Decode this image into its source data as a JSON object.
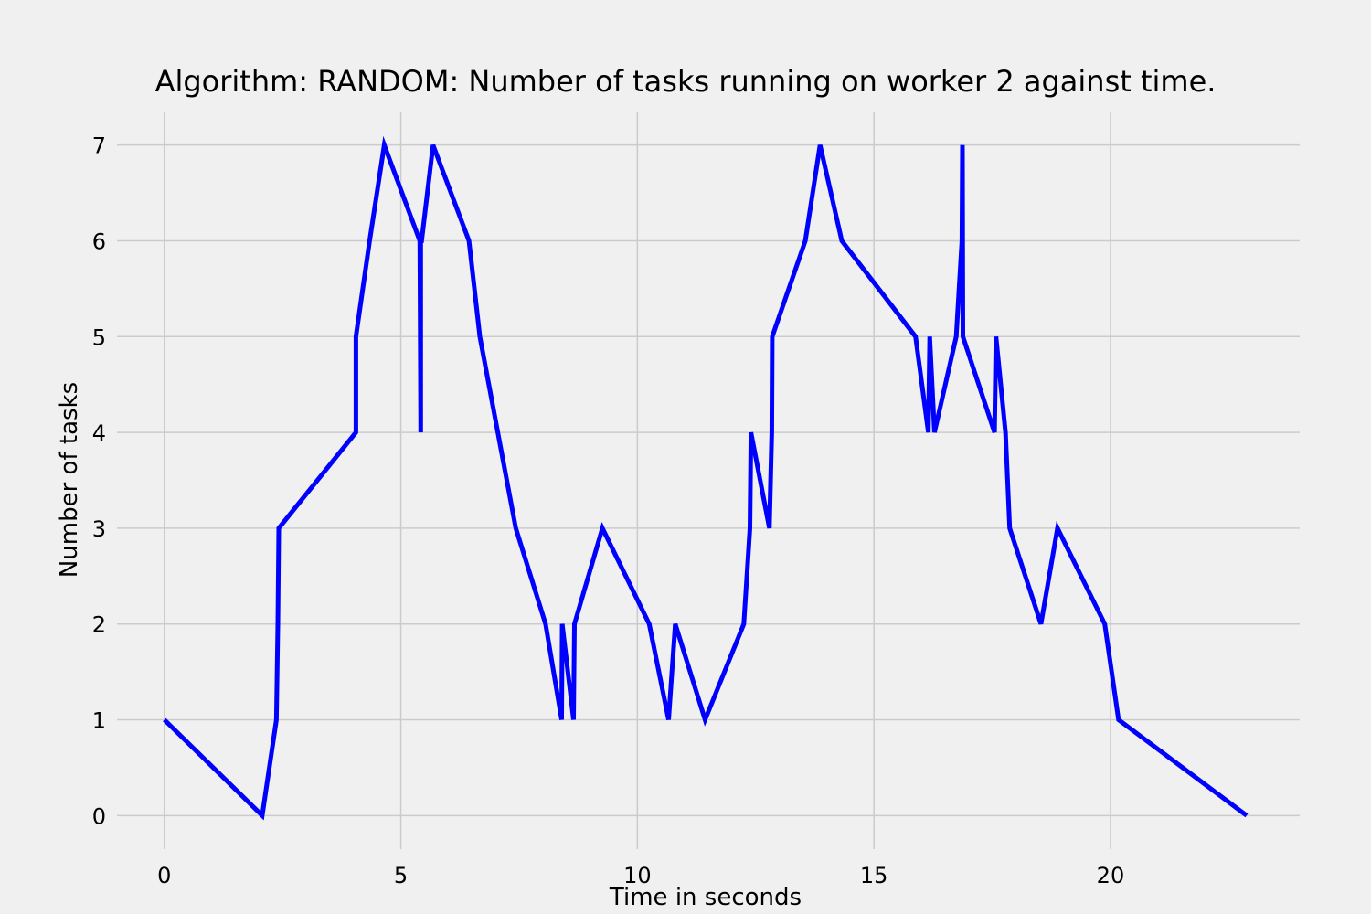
{
  "chart_data": {
    "type": "line",
    "title": "Algorithm: RANDOM: Number of tasks running on worker 2 against time.",
    "xlabel": "Time in seconds",
    "ylabel": "Number of tasks",
    "xlim": [
      -1.0,
      24.0
    ],
    "ylim": [
      -0.35,
      7.35
    ],
    "xticks": [
      0,
      5,
      10,
      15,
      20
    ],
    "yticks": [
      0,
      1,
      2,
      3,
      4,
      5,
      6,
      7
    ],
    "grid": true,
    "colors": {
      "line": "#0000ff",
      "background": "#f0f0f0",
      "grid": "#cbcbcb"
    },
    "series": [
      {
        "x": [
          0.0,
          2.07,
          2.37,
          2.4,
          2.42,
          4.05,
          4.05,
          4.34,
          4.65,
          5.4,
          5.42,
          5.42,
          5.44,
          5.68,
          6.44,
          6.67,
          7.43,
          8.06,
          8.4,
          8.41,
          8.65,
          8.67,
          9.26,
          10.25,
          10.66,
          10.8,
          11.43,
          12.25,
          12.38,
          12.4,
          12.79,
          12.84,
          12.85,
          13.55,
          13.86,
          14.32,
          15.88,
          16.15,
          16.18,
          16.28,
          16.74,
          16.86,
          16.87,
          16.88,
          17.55,
          17.58,
          17.78,
          17.87,
          18.53,
          18.88,
          19.88,
          20.17,
          22.88
        ],
        "y": [
          1,
          0,
          1,
          2,
          3,
          4,
          5,
          6,
          7,
          6,
          4,
          6,
          6,
          7,
          6,
          5,
          3,
          2,
          1,
          2,
          1,
          2,
          3,
          2,
          1,
          2,
          1,
          2,
          3,
          4,
          3,
          4,
          5,
          6,
          7,
          6,
          5,
          4,
          5,
          4,
          5,
          6,
          7,
          5,
          4,
          5,
          4,
          3,
          2,
          3,
          2,
          1,
          0
        ]
      }
    ]
  }
}
